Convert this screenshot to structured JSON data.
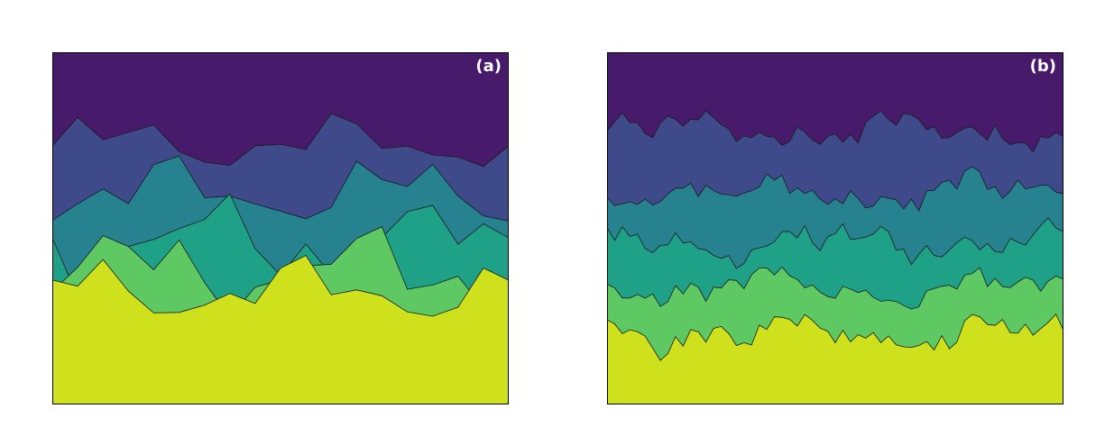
{
  "chart_data": [
    {
      "type": "heatmap",
      "label": "(a)",
      "colors": [
        "#481a6c",
        "#3e4a89",
        "#26828e",
        "#1fa187",
        "#5ec962",
        "#cfe11c"
      ],
      "ylim": [
        0,
        1
      ],
      "xlim": [
        0,
        1
      ],
      "interface_levels": [
        0.74,
        0.6,
        0.46,
        0.38,
        0.32
      ],
      "roughness": [
        0.1,
        0.13,
        0.17,
        0.16,
        0.12
      ]
    },
    {
      "type": "heatmap",
      "label": "(b)",
      "colors": [
        "#481a6c",
        "#3e4a89",
        "#26828e",
        "#1fa187",
        "#5ec962",
        "#cfe11c"
      ],
      "ylim": [
        0,
        1
      ],
      "xlim": [
        0,
        1
      ],
      "interface_levels": [
        0.78,
        0.6,
        0.46,
        0.33,
        0.2
      ],
      "roughness": [
        0.06,
        0.06,
        0.06,
        0.06,
        0.06
      ]
    }
  ]
}
